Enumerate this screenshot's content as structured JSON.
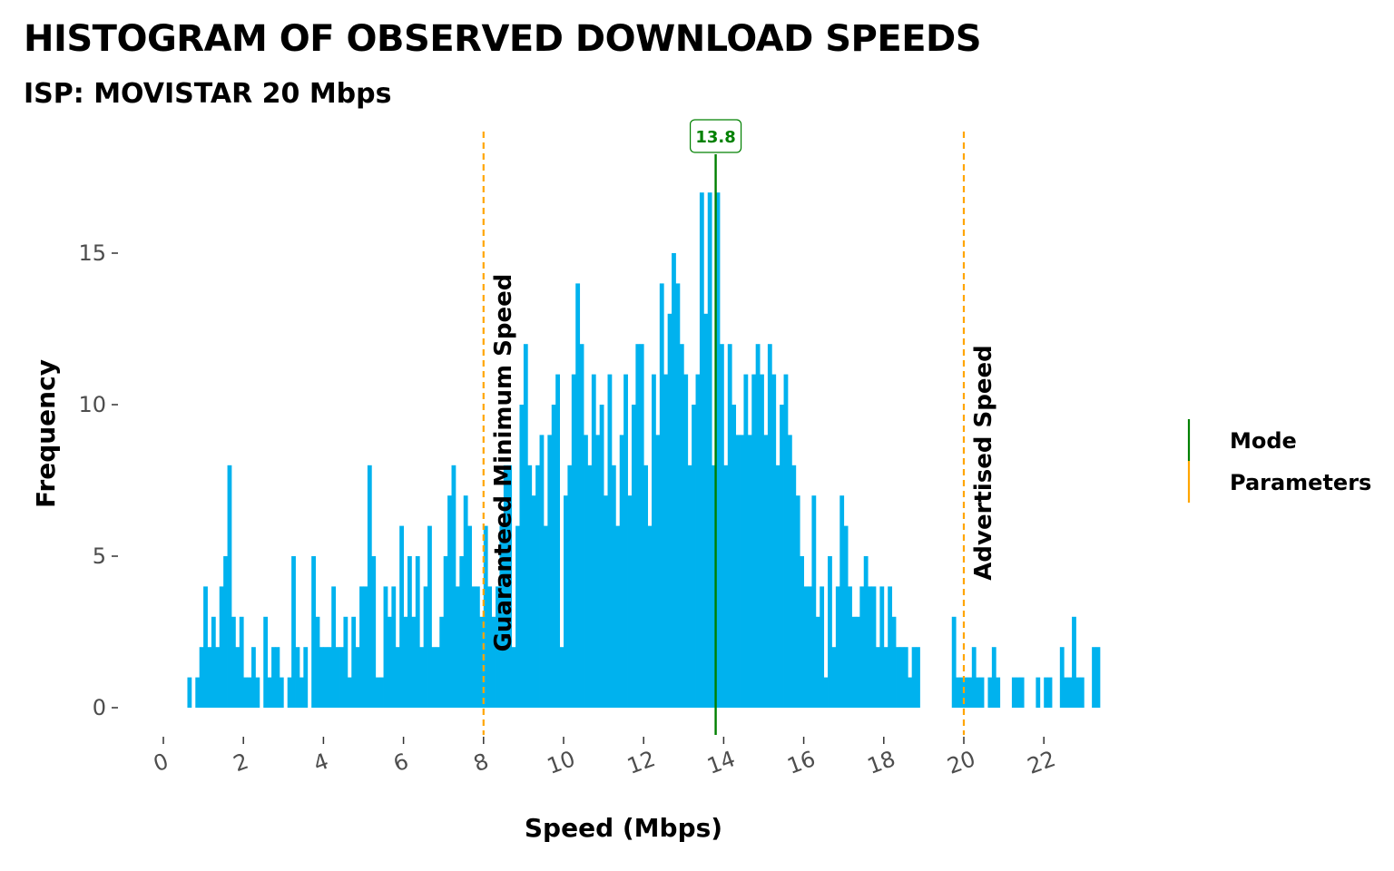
{
  "chart_data": {
    "type": "bar",
    "title": "HISTOGRAM OF OBSERVED DOWNLOAD SPEEDS",
    "subtitle": "ISP: MOVISTAR 20 Mbps",
    "xlabel": "Speed (Mbps)",
    "ylabel": "Frequency",
    "xlim": [
      0,
      22
    ],
    "ylim": [
      0,
      18
    ],
    "x_ticks": [
      0,
      2,
      4,
      6,
      8,
      10,
      12,
      14,
      16,
      18,
      20,
      22
    ],
    "y_ticks": [
      0,
      5,
      10,
      15
    ],
    "grid": false,
    "bin_width": 0.1,
    "bar_color": "#00B2EE",
    "bins_start": 0.6,
    "values": [
      1,
      0,
      1,
      2,
      4,
      2,
      3,
      2,
      4,
      5,
      8,
      3,
      2,
      3,
      1,
      1,
      2,
      1,
      0,
      3,
      1,
      2,
      2,
      1,
      0,
      1,
      5,
      2,
      1,
      2,
      0,
      5,
      3,
      2,
      2,
      2,
      4,
      2,
      2,
      3,
      1,
      3,
      2,
      4,
      4,
      8,
      5,
      1,
      1,
      4,
      3,
      4,
      2,
      6,
      3,
      5,
      3,
      5,
      2,
      4,
      6,
      2,
      2,
      3,
      5,
      7,
      8,
      4,
      5,
      7,
      6,
      4,
      4,
      3,
      6,
      4,
      3,
      4,
      6,
      8,
      8,
      2,
      6,
      10,
      12,
      8,
      7,
      8,
      9,
      6,
      9,
      10,
      11,
      2,
      7,
      8,
      11,
      14,
      12,
      9,
      8,
      11,
      9,
      10,
      7,
      11,
      8,
      6,
      9,
      11,
      7,
      10,
      12,
      12,
      8,
      6,
      11,
      9,
      14,
      11,
      13,
      15,
      14,
      12,
      11,
      8,
      10,
      11,
      17,
      13,
      17,
      8,
      17,
      12,
      8,
      12,
      10,
      9,
      9,
      11,
      9,
      11,
      12,
      11,
      9,
      12,
      11,
      8,
      10,
      11,
      9,
      8,
      7,
      5,
      4,
      4,
      7,
      3,
      4,
      1,
      5,
      2,
      4,
      7,
      6,
      4,
      3,
      3,
      4,
      5,
      4,
      4,
      2,
      4,
      2,
      4,
      3,
      2,
      2,
      2,
      1,
      2,
      2,
      0,
      0,
      0,
      0,
      0,
      0,
      0,
      0,
      3,
      1,
      1,
      1,
      1,
      2,
      1,
      1,
      0,
      1,
      2,
      1,
      0,
      0,
      0,
      1,
      1,
      1,
      0,
      0,
      0,
      1,
      0,
      1,
      1,
      0,
      0,
      2,
      1,
      1,
      3,
      1,
      1,
      0,
      0,
      2,
      2
    ]
  },
  "reference_lines": {
    "minimum": {
      "x": 8,
      "label": "Guaranteed Minimum Speed",
      "color": "#FFA500"
    },
    "advertised": {
      "x": 20,
      "label": "Advertised Speed",
      "color": "#FFA500"
    },
    "mode": {
      "x": 13.8,
      "label": "13.8",
      "color": "#008000"
    }
  },
  "legend": {
    "placement": "right",
    "items": [
      {
        "label": "Mode",
        "color": "#008000"
      },
      {
        "label": "Parameters",
        "color": "#FFA500"
      }
    ]
  }
}
